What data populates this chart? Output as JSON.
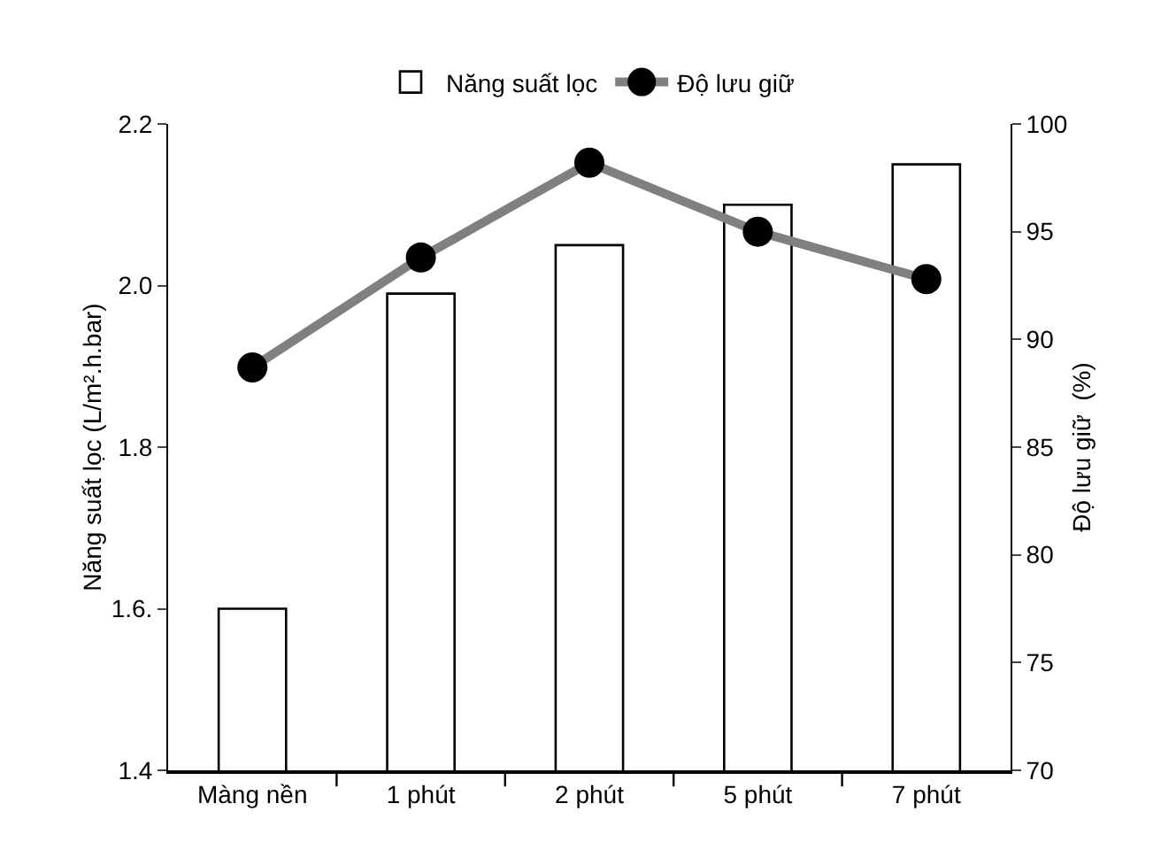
{
  "chart_data": {
    "type": "bar",
    "categories": [
      "Màng nền",
      "1 phút",
      "2 phút",
      "5 phút",
      "7 phút"
    ],
    "series": [
      {
        "name": "Năng suất lọc",
        "color": "#ffffff",
        "values": [
          1.6,
          1.99,
          2.05,
          2.1,
          2.15
        ]
      },
      {
        "name": "Độ lưu giữ",
        "type": "line",
        "axis": "y2",
        "color": "#808080",
        "marker": "circle",
        "values": [
          88.7,
          93.8,
          98.2,
          95.0,
          92.8
        ]
      }
    ],
    "ylabel": "Năng suất lọc (L/m².h.bar)",
    "y2label": "Độ lưu giữ  (%)",
    "ylim": [
      1.4,
      2.2
    ],
    "yticks": [
      {
        "value": 1.4,
        "label": "1.4"
      },
      {
        "value": 1.6,
        "label": "1.6."
      },
      {
        "value": 1.8,
        "label": "1.8"
      },
      {
        "value": 2.0,
        "label": "2.0"
      },
      {
        "value": 2.2,
        "label": "2.2"
      }
    ],
    "y2lim": [
      70,
      100
    ],
    "y2ticks": [
      70,
      75,
      80,
      85,
      90,
      95,
      100
    ],
    "grid": false,
    "legend": "top"
  }
}
